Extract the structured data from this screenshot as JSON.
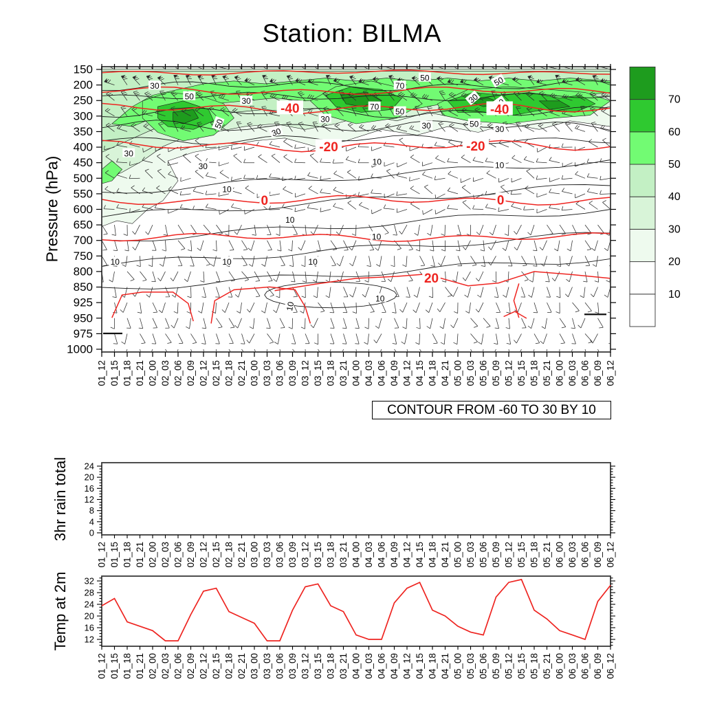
{
  "title": "Station: BILMA",
  "contour_note": "CONTOUR FROM -60 TO 30 BY 10",
  "time_labels": [
    "01_12",
    "01_15",
    "01_18",
    "01_21",
    "02_00",
    "02_03",
    "02_06",
    "02_09",
    "02_12",
    "02_15",
    "02_18",
    "02_21",
    "03_00",
    "03_03",
    "03_06",
    "03_09",
    "03_12",
    "03_15",
    "03_18",
    "03_21",
    "04_00",
    "04_03",
    "04_06",
    "04_09",
    "04_12",
    "04_15",
    "04_18",
    "04_21",
    "05_00",
    "05_03",
    "05_06",
    "05_09",
    "05_12",
    "05_15",
    "05_18",
    "05_21",
    "06_00",
    "06_03",
    "06_06",
    "06_09",
    "06_12"
  ],
  "panels": {
    "cross_section": {
      "ylabel": "Pressure (hPa)",
      "pressure_levels": [
        150,
        200,
        250,
        300,
        350,
        400,
        450,
        500,
        550,
        600,
        650,
        700,
        750,
        800,
        850,
        925,
        950,
        975,
        1000
      ]
    },
    "rain": {
      "ylabel": "3hr rain total",
      "yticks": [
        0,
        4,
        8,
        12,
        16,
        20,
        24
      ]
    },
    "temp": {
      "ylabel": "Temp at 2m",
      "yticks": [
        12,
        16,
        20,
        24,
        28,
        32
      ]
    }
  },
  "colorbar": {
    "labels": [
      10,
      20,
      30,
      40,
      50,
      60,
      70
    ],
    "colors_bottom_to_top": [
      "#ffffff",
      "#ffffff",
      "#eefaee",
      "#d8f4d8",
      "#c3f0c4",
      "#72fb73",
      "#2fc930",
      "#1e9c1e"
    ]
  },
  "colors": {
    "red_contour": "#ee2420",
    "isotach": "#1a1a1a",
    "barb": "#2b2b2b",
    "frame": "#3a3a3a"
  },
  "chart_data": [
    {
      "id": "wind_temp_cross_section",
      "type": "contour",
      "title": "Station: BILMA",
      "xlabel": "",
      "ylabel": "Pressure (hPa)",
      "categories": [
        "01_12",
        "01_15",
        "01_18",
        "01_21",
        "02_00",
        "02_03",
        "02_06",
        "02_09",
        "02_12",
        "02_15",
        "02_18",
        "02_21",
        "03_00",
        "03_03",
        "03_06",
        "03_09",
        "03_12",
        "03_15",
        "03_18",
        "03_21",
        "04_00",
        "04_03",
        "04_06",
        "04_09",
        "04_12",
        "04_15",
        "04_18",
        "04_21",
        "05_00",
        "05_03",
        "05_06",
        "05_09",
        "05_12",
        "05_15",
        "05_18",
        "05_21",
        "06_00",
        "06_03",
        "06_06",
        "06_09",
        "06_12"
      ],
      "y_levels_hPa": [
        150,
        200,
        250,
        300,
        350,
        400,
        450,
        500,
        550,
        600,
        650,
        700,
        750,
        800,
        850,
        925,
        950,
        975,
        1000
      ],
      "shading": {
        "quantity": "wind speed (shaded), strongest 70+ near 200-300 hPa",
        "levels": [
          10,
          20,
          30,
          40,
          50,
          60,
          70
        ],
        "colors_bottom_to_top": [
          "#ffffff",
          "#ffffff",
          "#eefaee",
          "#d8f4d8",
          "#c3f0c4",
          "#72fb73",
          "#2fc930",
          "#1e9c1e"
        ],
        "legend_position": "right"
      },
      "isotach_contour_labels": [
        {
          "text": "30",
          "x": 0.104,
          "y": 0.067
        },
        {
          "text": "50",
          "x": 0.172,
          "y": 0.104
        },
        {
          "text": "30",
          "x": 0.284,
          "y": 0.12
        },
        {
          "text": "50",
          "x": 0.23,
          "y": 0.2,
          "rot": -70
        },
        {
          "text": "30",
          "x": 0.439,
          "y": 0.183
        },
        {
          "text": "30",
          "x": 0.343,
          "y": 0.229,
          "rot": -20
        },
        {
          "text": "70",
          "x": 0.586,
          "y": 0.067
        },
        {
          "text": "50",
          "x": 0.635,
          "y": 0.039
        },
        {
          "text": "50",
          "x": 0.78,
          "y": 0.051,
          "rot": -30
        },
        {
          "text": "70",
          "x": 0.536,
          "y": 0.14
        },
        {
          "text": "50",
          "x": 0.586,
          "y": 0.157
        },
        {
          "text": "30",
          "x": 0.73,
          "y": 0.111,
          "rot": -40
        },
        {
          "text": "70",
          "x": 0.782,
          "y": 0.128,
          "rot": -35
        },
        {
          "text": "30",
          "x": 0.638,
          "y": 0.207
        },
        {
          "text": "50",
          "x": 0.732,
          "y": 0.2
        },
        {
          "text": "30",
          "x": 0.782,
          "y": 0.219
        },
        {
          "text": "30",
          "x": 0.053,
          "y": 0.304
        },
        {
          "text": "30",
          "x": 0.199,
          "y": 0.349
        },
        {
          "text": "10",
          "x": 0.541,
          "y": 0.333
        },
        {
          "text": "10",
          "x": 0.782,
          "y": 0.345
        },
        {
          "text": "10",
          "x": 0.246,
          "y": 0.429
        },
        {
          "text": "10",
          "x": 0.37,
          "y": 0.537
        },
        {
          "text": "10",
          "x": 0.54,
          "y": 0.595
        },
        {
          "text": "10",
          "x": 0.026,
          "y": 0.684
        },
        {
          "text": "10",
          "x": 0.246,
          "y": 0.684
        },
        {
          "text": "10",
          "x": 0.415,
          "y": 0.684
        },
        {
          "text": "10",
          "x": 0.547,
          "y": 0.812
        },
        {
          "text": "10",
          "x": 0.37,
          "y": 0.84,
          "rot": -80
        }
      ],
      "temperature_contours": {
        "note": "CONTOUR FROM -60 TO 30 BY 10",
        "labeled_values": [
          -40,
          -20,
          0,
          20
        ],
        "labels": [
          {
            "text": "-40",
            "x": 0.37,
            "y": 0.145
          },
          {
            "text": "-40",
            "x": 0.782,
            "y": 0.148
          },
          {
            "text": "-20",
            "x": 0.446,
            "y": 0.28
          },
          {
            "text": "-20",
            "x": 0.735,
            "y": 0.277
          },
          {
            "text": "0",
            "x": 0.32,
            "y": 0.468
          },
          {
            "text": "0",
            "x": 0.784,
            "y": 0.467
          },
          {
            "text": "20",
            "x": 0.648,
            "y": 0.74
          }
        ]
      },
      "wind_barbs": "barbs plotted at every time step and pressure level; westerly 50+ kt aloft, weak northeasterly flow in low levels"
    },
    {
      "id": "rain",
      "type": "line",
      "ylabel": "3hr rain total",
      "categories": [
        "01_12",
        "01_15",
        "01_18",
        "01_21",
        "02_00",
        "02_03",
        "02_06",
        "02_09",
        "02_12",
        "02_15",
        "02_18",
        "02_21",
        "03_00",
        "03_03",
        "03_06",
        "03_09",
        "03_12",
        "03_15",
        "03_18",
        "03_21",
        "04_00",
        "04_03",
        "04_06",
        "04_09",
        "04_12",
        "04_15",
        "04_18",
        "04_21",
        "05_00",
        "05_03",
        "05_06",
        "05_09",
        "05_12",
        "05_15",
        "05_18",
        "05_21",
        "06_00",
        "06_03",
        "06_06",
        "06_09",
        "06_12"
      ],
      "values": [
        0,
        0,
        0,
        0,
        0,
        0,
        0,
        0,
        0,
        0,
        0,
        0,
        0,
        0,
        0,
        0,
        0,
        0,
        0,
        0,
        0,
        0,
        0,
        0,
        0,
        0,
        0,
        0,
        0,
        0,
        0,
        0,
        0,
        0,
        0,
        0,
        0,
        0,
        0,
        0,
        0
      ],
      "yticks": [
        0,
        4,
        8,
        12,
        16,
        20,
        24
      ],
      "ylim": [
        0,
        25
      ],
      "grid": false
    },
    {
      "id": "temp",
      "type": "line",
      "ylabel": "Temp at 2m",
      "categories": [
        "01_12",
        "01_15",
        "01_18",
        "01_21",
        "02_00",
        "02_03",
        "02_06",
        "02_09",
        "02_12",
        "02_15",
        "02_18",
        "02_21",
        "03_00",
        "03_03",
        "03_06",
        "03_09",
        "03_12",
        "03_15",
        "03_18",
        "03_21",
        "04_00",
        "04_03",
        "04_06",
        "04_09",
        "04_12",
        "04_15",
        "04_18",
        "04_21",
        "05_00",
        "05_03",
        "05_06",
        "05_09",
        "05_12",
        "05_15",
        "05_18",
        "05_21",
        "06_00",
        "06_03",
        "06_06",
        "06_09",
        "06_12"
      ],
      "values": [
        23.5,
        26,
        18,
        16.5,
        15,
        11.5,
        11.5,
        20.5,
        28.5,
        29.5,
        21.5,
        19.5,
        17.5,
        11.5,
        11.5,
        22,
        30,
        31,
        23.5,
        21.5,
        13.5,
        12,
        12,
        24.5,
        29.5,
        31.5,
        22,
        20,
        16.5,
        14.5,
        13.5,
        26.5,
        31.5,
        32.5,
        22,
        19,
        15,
        13.5,
        12,
        25,
        30.5
      ],
      "yticks": [
        12,
        16,
        20,
        24,
        28,
        32
      ],
      "ylim": [
        9.5,
        33.5
      ],
      "line_color": "#ee2420",
      "grid": false
    }
  ]
}
